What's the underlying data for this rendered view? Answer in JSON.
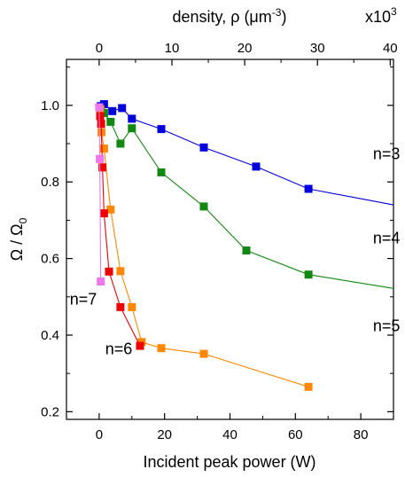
{
  "chart_data": {
    "type": "line",
    "xlabel": "Incident peak power (W)",
    "ylabel_main": "Ω / Ω",
    "ylabel_sub": "0",
    "xlim": [
      -10,
      90
    ],
    "ylim": [
      0.18,
      1.12
    ],
    "x_ticks": [
      0,
      20,
      40,
      60,
      80
    ],
    "y_ticks": [
      0.2,
      0.4,
      0.6,
      0.8,
      1.0
    ],
    "y_tick_labels": [
      "0.2",
      "0.4",
      "0.6",
      "0.8",
      "1.0"
    ],
    "grid": false,
    "top_axis": {
      "label_prefix": "density, ρ (μm",
      "label_exp": "-3",
      "label_suffix": ")",
      "multiplier_base": "x10",
      "multiplier_exp": "3",
      "ticks": [
        0,
        10,
        20,
        30,
        40
      ],
      "tick_labels": [
        "0",
        "10",
        "20",
        "30",
        "40"
      ],
      "power_per_unit": 2.225
    },
    "series": [
      {
        "name": "n=3",
        "color": "#0000dd",
        "label_at": [
          92,
          0.86
        ],
        "x": [
          0.5,
          1.5,
          4,
          7,
          10,
          19,
          32,
          48,
          64
        ],
        "y": [
          0.998,
          1.003,
          0.985,
          0.993,
          0.965,
          0.938,
          0.89,
          0.84,
          0.782
        ],
        "tail": [
          90,
          0.74
        ]
      },
      {
        "name": "n=4",
        "color": "#118811",
        "label_at": [
          92,
          0.64
        ],
        "x": [
          0.5,
          1.5,
          3.5,
          6.5,
          10,
          19,
          32,
          45,
          64
        ],
        "y": [
          0.99,
          0.98,
          0.957,
          0.9,
          0.94,
          0.825,
          0.736,
          0.621,
          0.558
        ],
        "tail": [
          90,
          0.522
        ]
      },
      {
        "name": "n=5",
        "color": "#ff8800",
        "label_at": [
          92,
          0.41
        ],
        "x": [
          0.3,
          0.7,
          1.5,
          3.5,
          6.5,
          10,
          13,
          19,
          32,
          64
        ],
        "y": [
          0.99,
          0.93,
          0.887,
          0.728,
          0.567,
          0.473,
          0.382,
          0.366,
          0.351,
          0.265
        ],
        "tail": null
      },
      {
        "name": "n=6",
        "color": "#ee0000",
        "label_at": [
          6,
          0.35
        ],
        "x": [
          0.3,
          0.6,
          1.0,
          1.5,
          3.0,
          6.5,
          12.5
        ],
        "y": [
          0.972,
          0.952,
          0.838,
          0.718,
          0.566,
          0.473,
          0.372
        ],
        "tail": null
      },
      {
        "name": "n=7",
        "color": "#ee77ee",
        "label_at": [
          -9,
          0.48
        ],
        "x": [
          0.0,
          0.2,
          0.5
        ],
        "y": [
          0.995,
          0.86,
          0.54
        ],
        "tail": null
      }
    ]
  }
}
